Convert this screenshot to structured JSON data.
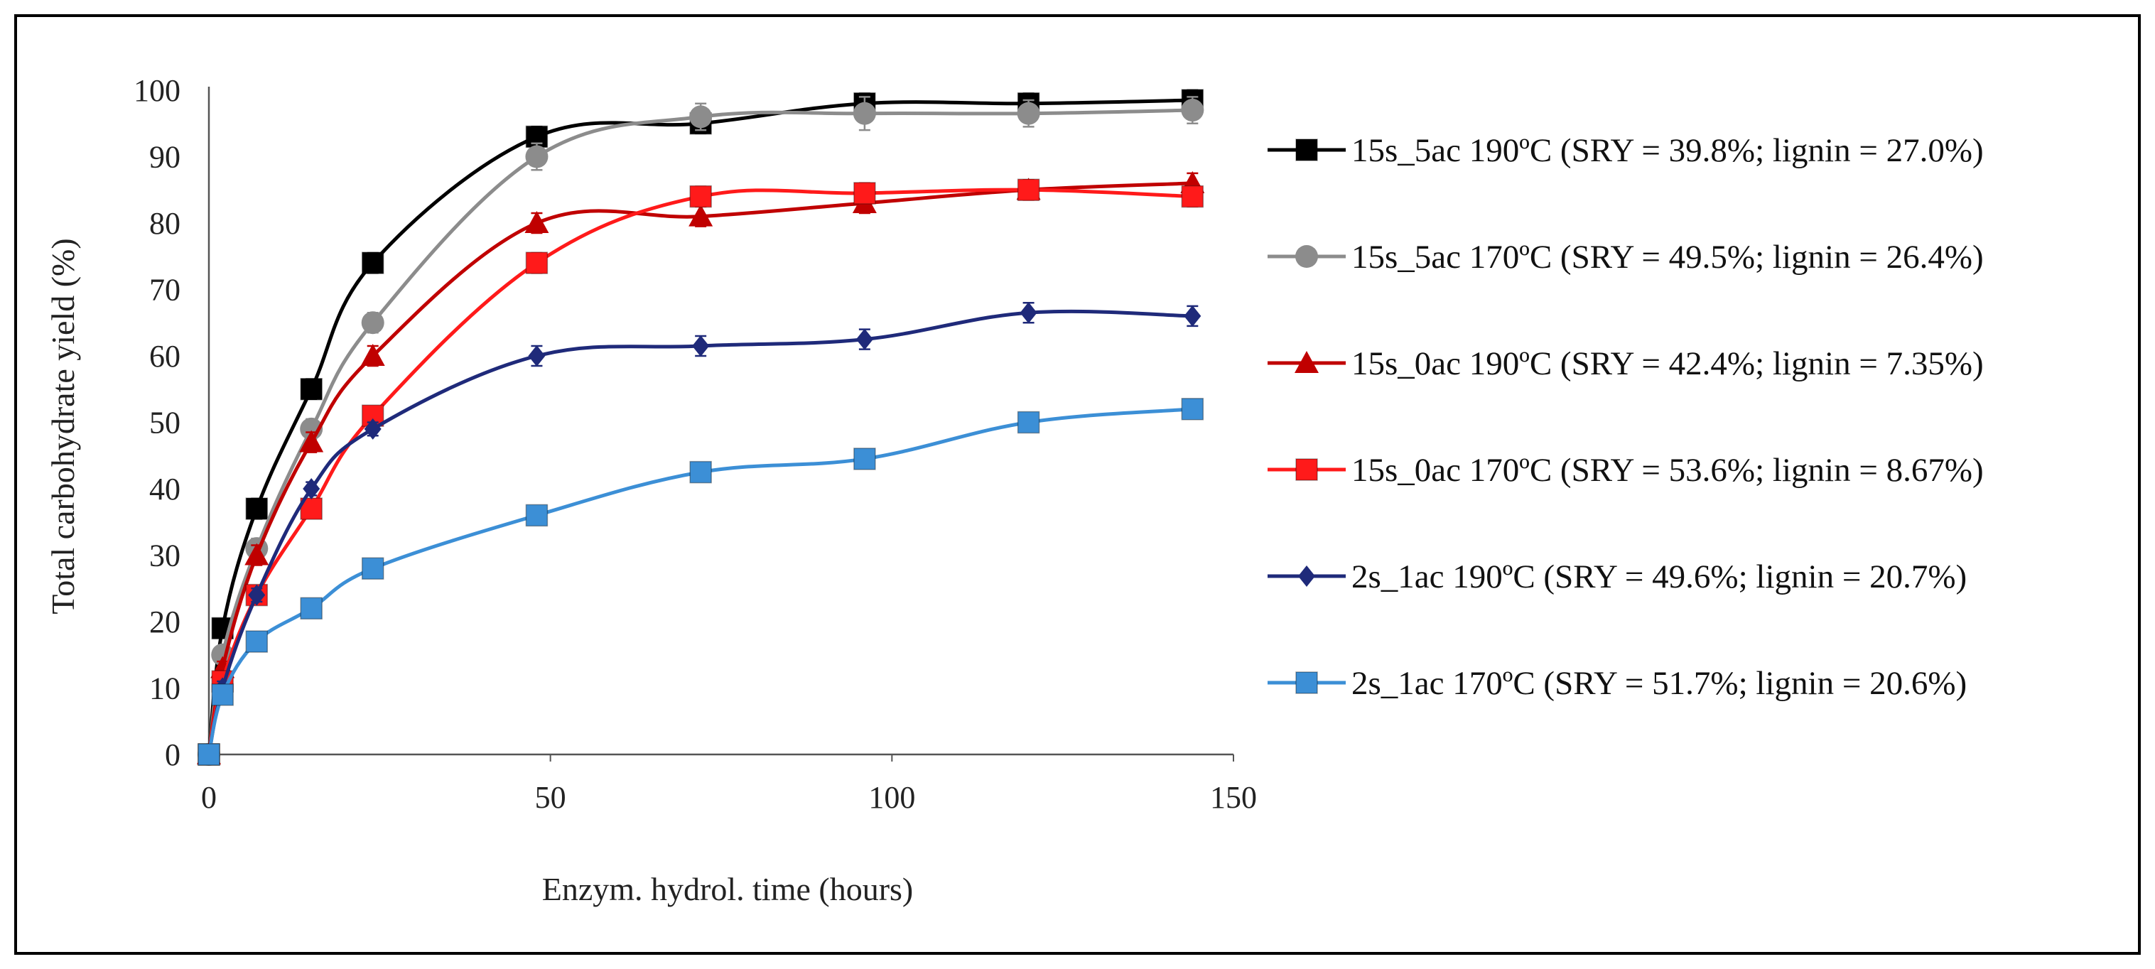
{
  "chart_data": {
    "type": "line",
    "title": "",
    "xlabel": "Enzym. hydrol. time (hours)",
    "ylabel": "Total carbohydrate yield (%)",
    "xlim": [
      0,
      150
    ],
    "ylim": [
      0,
      100
    ],
    "x_ticks": [
      0,
      50,
      100,
      150
    ],
    "y_ticks": [
      0,
      10,
      20,
      30,
      40,
      50,
      60,
      70,
      80,
      90,
      100
    ],
    "x_tick_labels": [
      "0",
      "50",
      "100",
      "150"
    ],
    "y_tick_labels": [
      "0",
      "10",
      "20",
      "30",
      "40",
      "50",
      "60",
      "70",
      "80",
      "90",
      "100"
    ],
    "grid": false,
    "legend_position": "right",
    "x": [
      0,
      2,
      7,
      15,
      24,
      48,
      72,
      96,
      120,
      144
    ],
    "series": [
      {
        "name": "15s_5ac 190ºC (SRY = 39.8%; lignin = 27.0%)",
        "color": "#000000",
        "marker": "square",
        "values": [
          0,
          19,
          37,
          55,
          74,
          93,
          95,
          98,
          98,
          98.5
        ],
        "errors": [
          0,
          1,
          1.5,
          1.5,
          1.5,
          1.5,
          1.5,
          1.5,
          1.5,
          1.5
        ]
      },
      {
        "name": "15s_5ac 170ºC (SRY = 49.5%; lignin = 26.4%)",
        "color": "#8c8c8c",
        "marker": "circle",
        "values": [
          0,
          15,
          31,
          49,
          65,
          90,
          96,
          96.5,
          96.5,
          97
        ],
        "errors": [
          0,
          1,
          1.5,
          1.5,
          1.5,
          2,
          2,
          2.5,
          2,
          2
        ]
      },
      {
        "name": "15s_0ac 190ºC (SRY = 42.4%; lignin = 7.35%)",
        "color": "#c00000",
        "marker": "triangle",
        "values": [
          0,
          13,
          30,
          47,
          60,
          80,
          81,
          83,
          85,
          86
        ],
        "errors": [
          0,
          1,
          1.5,
          1.5,
          1.5,
          1.5,
          1.5,
          1.5,
          1.5,
          1.5
        ]
      },
      {
        "name": "15s_0ac 170ºC (SRY = 53.6%; lignin = 8.67%)",
        "color": "#ff1a1a",
        "marker": "square",
        "values": [
          0,
          11,
          24,
          37,
          51,
          74,
          84,
          84.5,
          85,
          84
        ],
        "errors": [
          0,
          1,
          1,
          1,
          1,
          1.5,
          1.5,
          1.5,
          1.5,
          1.5
        ]
      },
      {
        "name": "2s_1ac 190ºC (SRY = 49.6%; lignin = 20.7%)",
        "color": "#1f2a7a",
        "marker": "diamond",
        "values": [
          0,
          10,
          24,
          40,
          49,
          60,
          61.5,
          62.5,
          66.5,
          66
        ],
        "errors": [
          0,
          1,
          1,
          1,
          1,
          1.5,
          1.5,
          1.5,
          1.5,
          1.5
        ]
      },
      {
        "name": "2s_1ac 170ºC (SRY = 51.7%; lignin = 20.6%)",
        "color": "#3c8fd6",
        "marker": "square",
        "values": [
          0,
          9,
          17,
          22,
          28,
          36,
          42.5,
          44.5,
          50,
          52
        ],
        "errors": [
          0,
          0.8,
          0.8,
          0.8,
          0.8,
          1,
          1,
          1,
          1,
          1
        ]
      }
    ]
  }
}
